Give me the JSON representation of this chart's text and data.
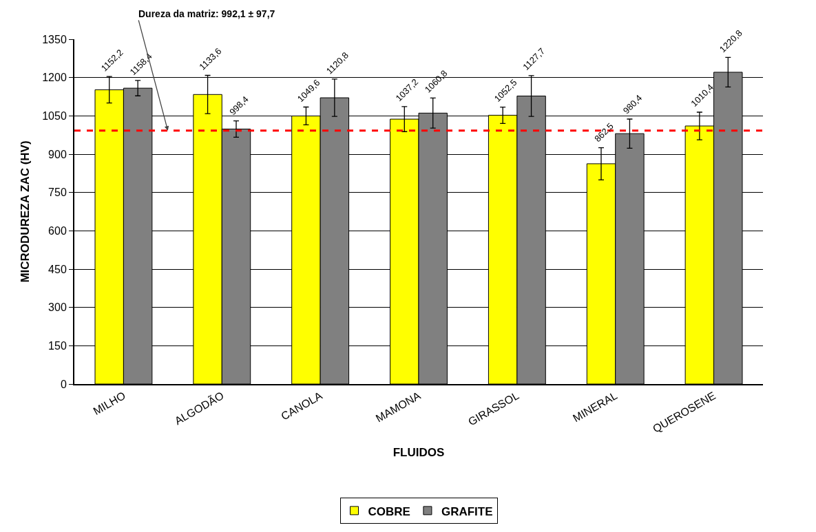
{
  "chart_data": {
    "type": "bar",
    "xlabel": "FLUIDOS",
    "ylabel": "MICRODUREZA ZAC (HV)",
    "categories": [
      "MILHO",
      "ALGODÃO",
      "CANOLA",
      "MAMONA",
      "GIRASSOL",
      "MINERAL",
      "QUEROSENE"
    ],
    "series": [
      {
        "name": "COBRE",
        "color": "#ffff00",
        "values": [
          1152.2,
          1133.6,
          1049.6,
          1037.2,
          1052.5,
          862.5,
          1010.4
        ],
        "value_labels": [
          "1152,2",
          "1133,6",
          "1049,6",
          "1037,2",
          "1052,5",
          "862,5",
          "1010,4"
        ],
        "errors": [
          52,
          75,
          35,
          49,
          32,
          63,
          54
        ]
      },
      {
        "name": "GRAFITE",
        "color": "#808080",
        "values": [
          1158.4,
          998.4,
          1120.8,
          1060.8,
          1127.7,
          980.4,
          1220.8
        ],
        "value_labels": [
          "1158,4",
          "998,4",
          "1120,8",
          "1060,8",
          "1127,7",
          "980,4",
          "1220,8"
        ],
        "errors": [
          30,
          32,
          73,
          59,
          80,
          57,
          58
        ]
      }
    ],
    "ylim": [
      0,
      1350
    ],
    "yticks": [
      0,
      150,
      300,
      450,
      600,
      750,
      900,
      1050,
      1200,
      1350
    ],
    "ref_lines": [
      {
        "axis": "y",
        "value": 992.1,
        "label": "Dureza da matriz: 992,1 ± 97,7",
        "color": "#ff0000",
        "line_style": "dashed"
      }
    ],
    "grid": "y",
    "legend": "bottom"
  }
}
